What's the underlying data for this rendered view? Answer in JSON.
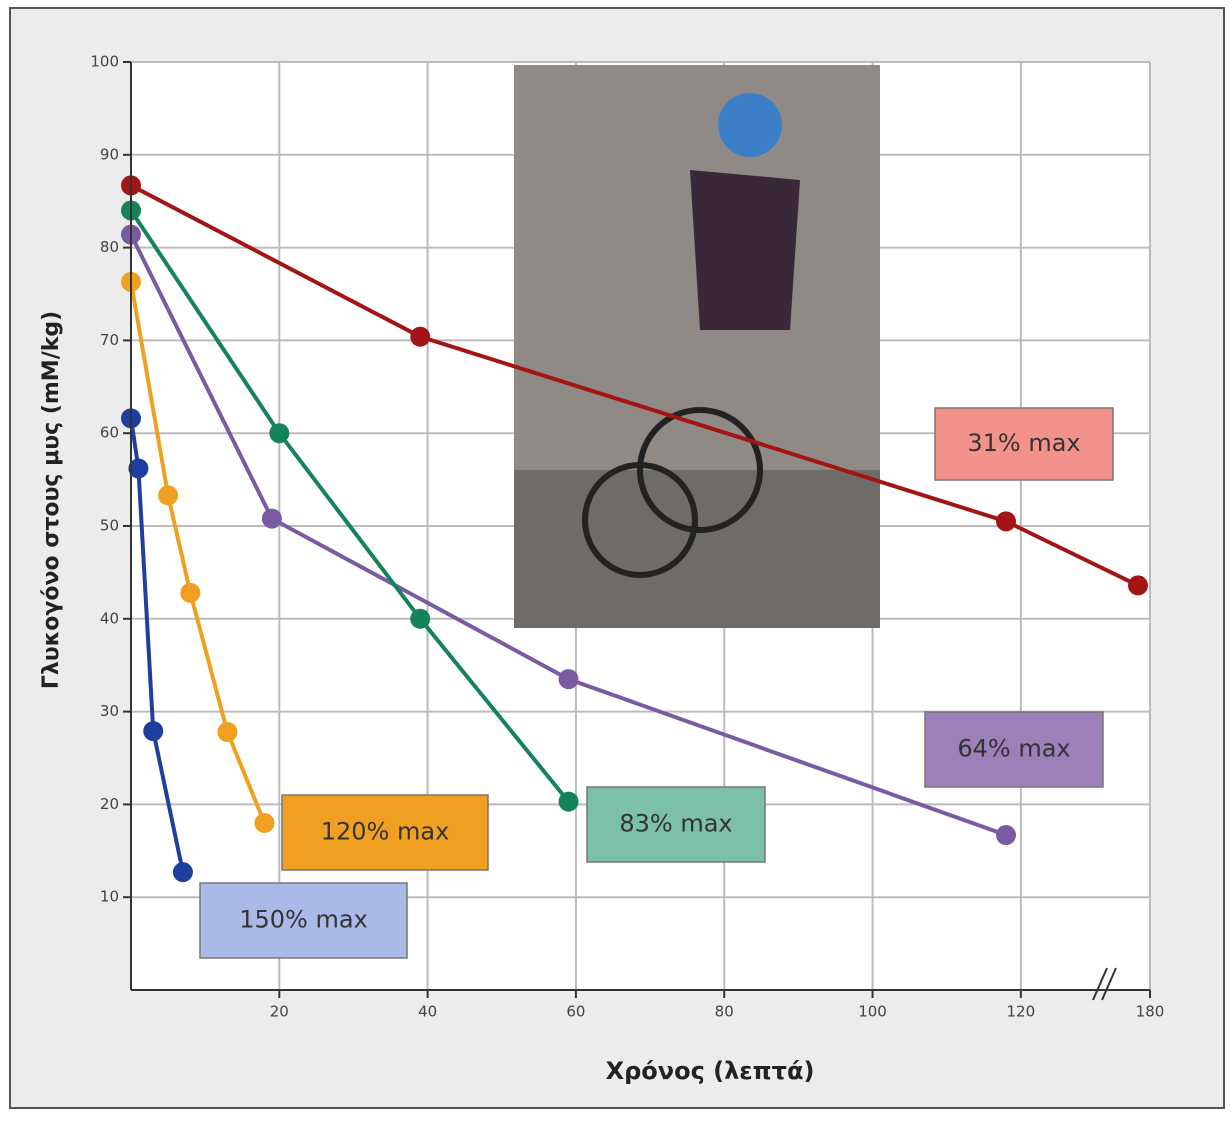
{
  "chart_data": {
    "type": "line",
    "x_label": "Χρόνος (λεπτά)",
    "y_label": "Γλυκογόνο στους μυς (mM/kg)",
    "xlim": [
      0,
      180
    ],
    "x_break": [
      130,
      170
    ],
    "xticks": [
      20,
      40,
      60,
      80,
      100,
      120,
      180
    ],
    "ylim": [
      0,
      100
    ],
    "yticks": [
      10,
      20,
      30,
      40,
      50,
      60,
      70,
      80,
      90,
      100
    ],
    "grid": true,
    "series": [
      {
        "name": "31% max",
        "color": "#a31515",
        "box_color": "#f2928a",
        "x": [
          0,
          39,
          118,
          177
        ],
        "values": [
          86.7,
          70.4,
          50.5,
          43.6
        ]
      },
      {
        "name": "64% max",
        "color": "#7a5aa3",
        "box_color": "#9d80b9",
        "x": [
          0,
          19,
          59,
          118
        ],
        "values": [
          81.4,
          50.8,
          33.5,
          16.7
        ]
      },
      {
        "name": "83% max",
        "color": "#14835a",
        "box_color": "#7cc0a7",
        "x": [
          0,
          20,
          39,
          59
        ],
        "values": [
          84,
          60,
          40,
          20.3
        ]
      },
      {
        "name": "120% max",
        "color": "#f0a020",
        "box_color": "#f0a020",
        "x": [
          0,
          5,
          8,
          13,
          18
        ],
        "values": [
          76.3,
          53.3,
          42.8,
          27.8,
          18
        ]
      },
      {
        "name": "150% max",
        "color": "#1f3f9f",
        "box_color": "#a9b9e8",
        "x": [
          0,
          1,
          3,
          7
        ],
        "values": [
          61.6,
          56.2,
          27.9,
          12.7
        ]
      }
    ]
  }
}
